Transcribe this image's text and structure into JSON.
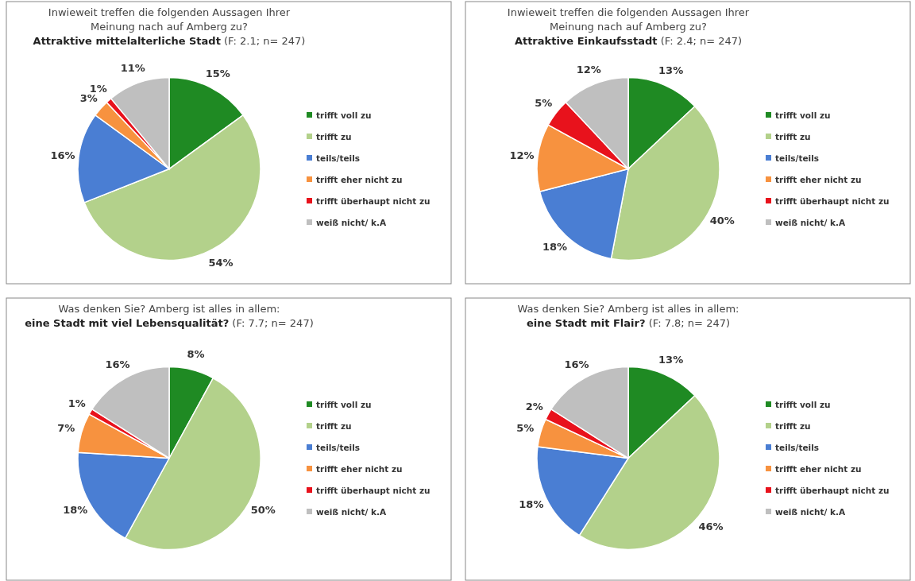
{
  "chart_data": [
    {
      "type": "pie",
      "title": "Inwieweit treffen die folgenden Aussagen Ihrer Meinung nach auf Amberg zu?",
      "subtitle": "Attraktive mittelalterliche Stadt",
      "annotations": [
        "(F: 2.1; n= 247)"
      ],
      "categories": [
        "trifft voll zu",
        "trifft zu",
        "teils/teils",
        "trifft eher nicht zu",
        "trifft überhaupt nicht zu",
        "weiß nicht/ k.A"
      ],
      "values": [
        15,
        54,
        16,
        3,
        1,
        11
      ],
      "value_labels": [
        "15%",
        "54%",
        "16%",
        "3%",
        "1%",
        "11%"
      ],
      "colors": [
        "#1f8a23",
        "#b3d18b",
        "#4a7ed3",
        "#f7923f",
        "#e8121c",
        "#bfbfbf"
      ],
      "legend": "right"
    },
    {
      "type": "pie",
      "title": "Inwieweit treffen die folgenden Aussagen Ihrer Meinung nach auf Amberg zu?",
      "subtitle": "Attraktive Einkaufsstadt",
      "annotations": [
        "(F: 2.4; n= 247)"
      ],
      "categories": [
        "trifft voll zu",
        "trifft zu",
        "teils/teils",
        "trifft eher nicht zu",
        "trifft überhaupt nicht zu",
        "weiß nicht/ k.A"
      ],
      "values": [
        13,
        40,
        18,
        12,
        5,
        12
      ],
      "value_labels": [
        "13%",
        "40%",
        "18%",
        "12%",
        "5%",
        "12%"
      ],
      "colors": [
        "#1f8a23",
        "#b3d18b",
        "#4a7ed3",
        "#f7923f",
        "#e8121c",
        "#bfbfbf"
      ],
      "legend": "right"
    },
    {
      "type": "pie",
      "title": "Was denken Sie? Amberg ist alles in allem:",
      "subtitle": "eine Stadt mit viel Lebensqualität?",
      "annotations": [
        "(F: 7.7; n= 247)"
      ],
      "categories": [
        "trifft voll zu",
        "trifft zu",
        "teils/teils",
        "trifft eher nicht zu",
        "trifft überhaupt nicht zu",
        "weiß nicht/ k.A"
      ],
      "values": [
        8,
        50,
        18,
        7,
        1,
        16
      ],
      "value_labels": [
        "8%",
        "50%",
        "18%",
        "7%",
        "1%",
        "16%"
      ],
      "colors": [
        "#1f8a23",
        "#b3d18b",
        "#4a7ed3",
        "#f7923f",
        "#e8121c",
        "#bfbfbf"
      ],
      "legend": "right"
    },
    {
      "type": "pie",
      "title": "Was denken Sie? Amberg ist alles in allem:",
      "subtitle": "eine Stadt mit Flair?",
      "annotations": [
        "(F: 7.8; n= 247)"
      ],
      "categories": [
        "trifft voll zu",
        "trifft zu",
        "teils/teils",
        "trifft eher nicht zu",
        "trifft überhaupt nicht zu",
        "weiß nicht/ k.A"
      ],
      "values": [
        13,
        46,
        18,
        5,
        2,
        16
      ],
      "value_labels": [
        "13%",
        "46%",
        "18%",
        "5%",
        "2%",
        "16%"
      ],
      "colors": [
        "#1f8a23",
        "#b3d18b",
        "#4a7ed3",
        "#f7923f",
        "#e8121c",
        "#bfbfbf"
      ],
      "legend": "right"
    }
  ]
}
